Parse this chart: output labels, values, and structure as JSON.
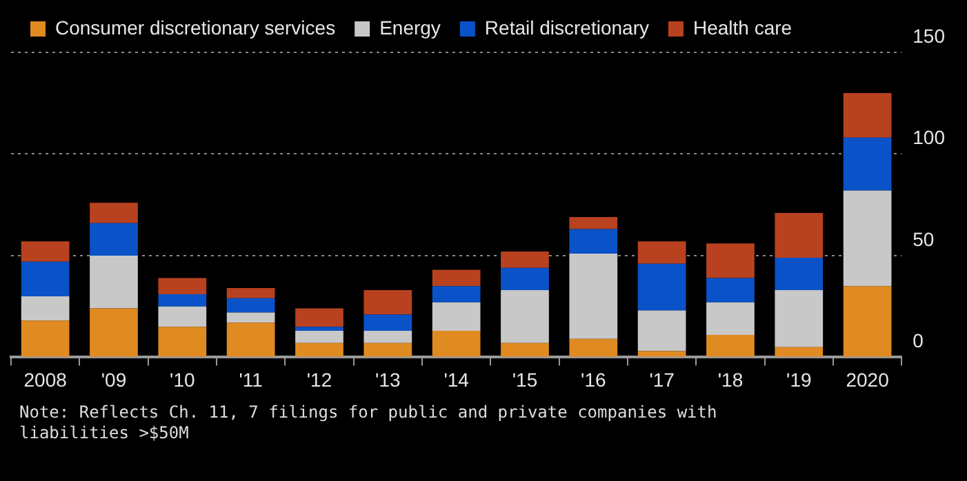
{
  "chart_data": {
    "type": "bar",
    "stacked": true,
    "categories": [
      "2008",
      "'09",
      "'10",
      "'11",
      "'12",
      "'13",
      "'14",
      "'15",
      "'16",
      "'17",
      "'18",
      "'19",
      "2020"
    ],
    "series": [
      {
        "name": "Consumer discretionary services",
        "color": "#e08a22",
        "values": [
          18,
          24,
          15,
          17,
          7,
          7,
          13,
          7,
          9,
          3,
          11,
          5,
          35
        ]
      },
      {
        "name": "Energy",
        "color": "#c8c8c8",
        "values": [
          12,
          26,
          10,
          5,
          6,
          6,
          14,
          26,
          42,
          20,
          16,
          28,
          47
        ]
      },
      {
        "name": "Retail discretionary",
        "color": "#0a52c8",
        "values": [
          17,
          16,
          6,
          7,
          2,
          8,
          8,
          11,
          12,
          23,
          12,
          16,
          26
        ]
      },
      {
        "name": "Health care",
        "color": "#b8421f",
        "values": [
          10,
          10,
          8,
          5,
          9,
          12,
          8,
          8,
          6,
          11,
          17,
          22,
          22
        ]
      }
    ],
    "ylim": [
      0,
      150
    ],
    "yticks": [
      0,
      50,
      100,
      150
    ],
    "grid": "y",
    "legend": "top left",
    "annotations": [
      "Note: Reflects Ch. 11, 7 filings for public and private companies with liabilities >$50M"
    ]
  }
}
